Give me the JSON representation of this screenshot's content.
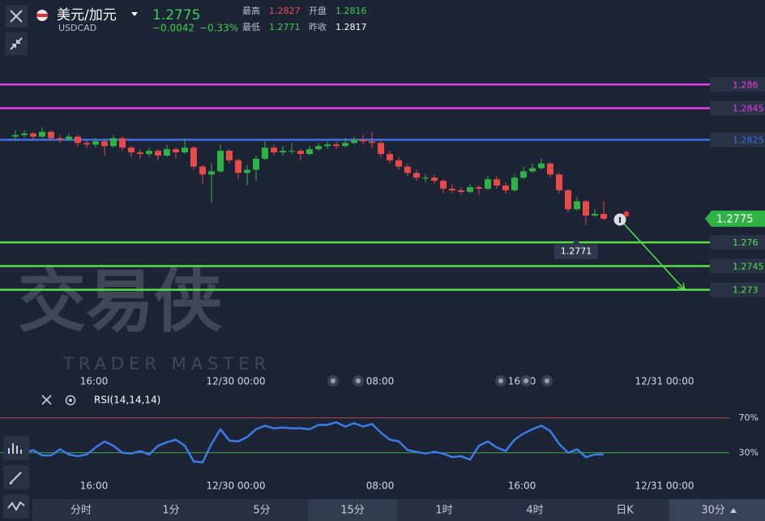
{
  "header": {
    "symbol": "美元/加元",
    "code": "USDCAD",
    "price": "1.2775",
    "change": "−0.0042",
    "change_pct": "−0.33%",
    "stats": [
      {
        "label": "最高",
        "value": "1.2827"
      },
      {
        "label": "开盘",
        "value": "1.2816"
      },
      {
        "label": "最低",
        "value": "1.2771"
      },
      {
        "label": "昨收",
        "value": "1.2817"
      }
    ]
  },
  "chart_data": {
    "type": "candlestick",
    "ylim": [
      1.268,
      1.2893
    ],
    "up_color": "#2fb344",
    "down_color": "#e84a4a",
    "candles": [
      [
        1.2827,
        1.2831,
        1.2825,
        1.2828
      ],
      [
        1.2828,
        1.2831,
        1.2826,
        1.2829
      ],
      [
        1.2829,
        1.283,
        1.2825,
        1.2827
      ],
      [
        1.2827,
        1.2833,
        1.2826,
        1.283
      ],
      [
        1.283,
        1.2831,
        1.2824,
        1.2826
      ],
      [
        1.2826,
        1.2828,
        1.2823,
        1.2825
      ],
      [
        1.2825,
        1.2829,
        1.2824,
        1.2827
      ],
      [
        1.2827,
        1.2828,
        1.2821,
        1.2823
      ],
      [
        1.2823,
        1.2825,
        1.282,
        1.2822
      ],
      [
        1.2822,
        1.2826,
        1.282,
        1.2824
      ],
      [
        1.2824,
        1.2825,
        1.2815,
        1.2821
      ],
      [
        1.2821,
        1.2828,
        1.282,
        1.2826
      ],
      [
        1.2826,
        1.2827,
        1.2818,
        1.282
      ],
      [
        1.282,
        1.2821,
        1.2814,
        1.2817
      ],
      [
        1.2817,
        1.2819,
        1.2813,
        1.2816
      ],
      [
        1.2816,
        1.282,
        1.2814,
        1.2818
      ],
      [
        1.2818,
        1.2819,
        1.2812,
        1.2815
      ],
      [
        1.2815,
        1.2822,
        1.2814,
        1.2819
      ],
      [
        1.2819,
        1.282,
        1.2813,
        1.2817
      ],
      [
        1.2817,
        1.2826,
        1.2816,
        1.282
      ],
      [
        1.282,
        1.2821,
        1.2806,
        1.2808
      ],
      [
        1.2808,
        1.2809,
        1.2797,
        1.2803
      ],
      [
        1.2803,
        1.281,
        1.2785,
        1.2805
      ],
      [
        1.2805,
        1.2822,
        1.2804,
        1.2818
      ],
      [
        1.2818,
        1.2819,
        1.281,
        1.2812
      ],
      [
        1.2812,
        1.2813,
        1.28,
        1.2804
      ],
      [
        1.2804,
        1.2809,
        1.2796,
        1.2806
      ],
      [
        1.2806,
        1.2815,
        1.2799,
        1.2813
      ],
      [
        1.2813,
        1.2824,
        1.2812,
        1.282
      ],
      [
        1.282,
        1.2822,
        1.2815,
        1.2817
      ],
      [
        1.2817,
        1.2821,
        1.2815,
        1.2818
      ],
      [
        1.2818,
        1.2823,
        1.2816,
        1.2818
      ],
      [
        1.2818,
        1.2819,
        1.2812,
        1.2816
      ],
      [
        1.2816,
        1.2821,
        1.2815,
        1.2819
      ],
      [
        1.2819,
        1.2823,
        1.2818,
        1.2821
      ],
      [
        1.2821,
        1.2824,
        1.2819,
        1.2822
      ],
      [
        1.2822,
        1.2824,
        1.2819,
        1.2821
      ],
      [
        1.2821,
        1.2826,
        1.282,
        1.2823
      ],
      [
        1.2823,
        1.2827,
        1.2822,
        1.2825
      ],
      [
        1.2825,
        1.2828,
        1.2822,
        1.2824
      ],
      [
        1.2824,
        1.283,
        1.282,
        1.2823
      ],
      [
        1.2823,
        1.2825,
        1.2814,
        1.2816
      ],
      [
        1.2816,
        1.2818,
        1.281,
        1.2812
      ],
      [
        1.2812,
        1.2814,
        1.2806,
        1.2808
      ],
      [
        1.2808,
        1.281,
        1.2802,
        1.2804
      ],
      [
        1.2804,
        1.2806,
        1.2799,
        1.2801
      ],
      [
        1.2801,
        1.2803,
        1.2798,
        1.2801
      ],
      [
        1.2801,
        1.2803,
        1.2797,
        1.2799
      ],
      [
        1.2799,
        1.28,
        1.2791,
        1.2794
      ],
      [
        1.2794,
        1.2797,
        1.2791,
        1.2793
      ],
      [
        1.2793,
        1.2795,
        1.279,
        1.2792
      ],
      [
        1.2792,
        1.2797,
        1.2791,
        1.2795
      ],
      [
        1.2795,
        1.2796,
        1.279,
        1.2794
      ],
      [
        1.2794,
        1.2802,
        1.2793,
        1.28
      ],
      [
        1.28,
        1.2802,
        1.2794,
        1.2796
      ],
      [
        1.2796,
        1.2798,
        1.2791,
        1.2793
      ],
      [
        1.2793,
        1.2803,
        1.2792,
        1.2801
      ],
      [
        1.2801,
        1.2808,
        1.28,
        1.2805
      ],
      [
        1.2805,
        1.281,
        1.2804,
        1.2807
      ],
      [
        1.2807,
        1.2813,
        1.2806,
        1.281
      ],
      [
        1.281,
        1.2811,
        1.2801,
        1.2803
      ],
      [
        1.2803,
        1.2804,
        1.2791,
        1.2793
      ],
      [
        1.2793,
        1.2794,
        1.2779,
        1.2781
      ],
      [
        1.2781,
        1.2789,
        1.278,
        1.2786
      ],
      [
        1.2786,
        1.2787,
        1.2771,
        1.2777
      ],
      [
        1.2777,
        1.2781,
        1.2776,
        1.2778
      ],
      [
        1.2778,
        1.2786,
        1.2774,
        1.2775
      ]
    ],
    "levels": [
      {
        "value": 1.286,
        "color": "#e43ce6"
      },
      {
        "value": 1.2845,
        "color": "#e43ce6"
      },
      {
        "value": 1.2825,
        "color": "#3f6fe6"
      },
      {
        "value": 1.276,
        "color": "#55e04a"
      },
      {
        "value": 1.2745,
        "color": "#55e04a"
      },
      {
        "value": 1.273,
        "color": "#55e04a"
      }
    ],
    "current_price": 1.2775,
    "low_label": 1.2771,
    "x_labels": [
      "16:00",
      "12/30 00:00",
      "08:00",
      "16:00",
      "12/31 00:00"
    ]
  },
  "rsi": {
    "label": "RSI(14,14,14)",
    "ylim": [
      0,
      100
    ],
    "color": "#3c7be8",
    "levels": [
      {
        "value": 70,
        "label": "70%",
        "color": "#b84848"
      },
      {
        "value": 30,
        "label": "30%",
        "color": "#3fae3f"
      }
    ],
    "values": [
      32,
      30,
      33,
      27,
      27,
      34,
      28,
      26,
      28,
      36,
      43,
      38,
      30,
      29,
      32,
      28,
      38,
      42,
      45,
      38,
      20,
      19,
      40,
      57,
      44,
      43,
      48,
      57,
      61,
      58,
      59,
      58,
      58,
      57,
      62,
      62,
      65,
      60,
      64,
      60,
      63,
      53,
      45,
      43,
      33,
      31,
      29,
      31,
      29,
      25,
      26,
      22,
      38,
      43,
      36,
      32,
      45,
      52,
      57,
      61,
      55,
      40,
      30,
      34,
      25,
      28,
      28
    ]
  },
  "watermark": {
    "title": "交易侠",
    "subtitle": "TRADER MASTER"
  },
  "toolbar": [
    "分时",
    "1分",
    "5分",
    "15分",
    "1时",
    "4时",
    "日K",
    "30分"
  ]
}
